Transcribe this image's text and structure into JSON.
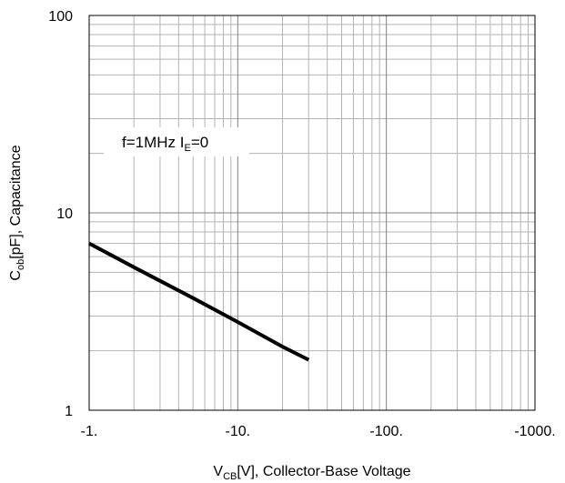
{
  "chart_data": {
    "type": "line",
    "x_scale": "log",
    "y_scale": "log",
    "x_direction": "negative (magnitude increases to the right)",
    "xlim": [
      -1,
      -1000
    ],
    "ylim": [
      1,
      100
    ],
    "x_ticks": [
      -1,
      -10,
      -100,
      -1000
    ],
    "x_tick_labels": [
      "-1.",
      "-10.",
      "-100.",
      "-1000."
    ],
    "y_ticks": [
      1,
      10,
      100
    ],
    "y_tick_labels": [
      "1",
      "10",
      "100"
    ],
    "xlabel": {
      "main": "V",
      "sub": "CB",
      "rest": "[V], Collector-Base Voltage"
    },
    "ylabel": {
      "main": "C",
      "sub": "ob",
      "rest": "[pF], Capacitance"
    },
    "grid": true,
    "annotation": {
      "part1": "f=1MHz I",
      "sub": "E",
      "part2": "=0"
    },
    "series": [
      {
        "x": [
          -1,
          -2,
          -5,
          -10,
          -20,
          -30
        ],
        "y": [
          7.0,
          5.3,
          3.7,
          2.8,
          2.1,
          1.8
        ]
      }
    ],
    "colors": {
      "line": "#000000",
      "major_grid": "#808080",
      "minor_grid": "#b3b3b3",
      "border": "#000000"
    }
  }
}
